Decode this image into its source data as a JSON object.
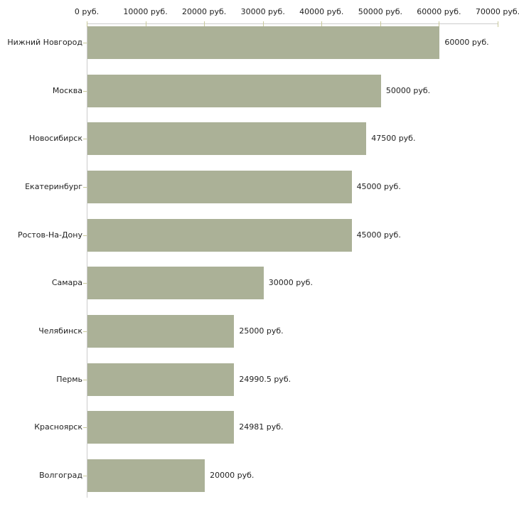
{
  "chart_data": {
    "type": "bar",
    "orientation": "horizontal",
    "title": "",
    "categories": [
      "Нижний Новгород",
      "Москва",
      "Новосибирск",
      "Екатеринбург",
      "Ростов-На-Дону",
      "Самара",
      "Челябинск",
      "Пермь",
      "Красноярск",
      "Волгоград"
    ],
    "values": [
      60000,
      50000,
      47500,
      45000,
      45000,
      30000,
      25000,
      24990.5,
      24981,
      20000
    ],
    "value_labels": [
      "60000 руб.",
      "50000 руб.",
      "47500 руб.",
      "45000 руб.",
      "45000 руб.",
      "30000 руб.",
      "25000 руб.",
      "24990.5 руб.",
      "24981 руб.",
      "20000 руб."
    ],
    "xlabel": "",
    "ylabel": "",
    "x_axis": {
      "position": "top",
      "min": 0,
      "max": 70000,
      "tick_values": [
        0,
        10000,
        20000,
        30000,
        40000,
        50000,
        60000,
        70000
      ],
      "tick_labels": [
        "0 руб.",
        "10000 руб.",
        "20000 руб.",
        "30000 руб.",
        "40000 руб.",
        "50000 руб.",
        "60000 руб.",
        "70000 руб."
      ]
    },
    "grid": false,
    "legend": false,
    "colors": {
      "bar": "#abb197",
      "axis_line": "#cccccc",
      "tick": "#c9c99a",
      "text": "#1f1f1f",
      "background": "#ffffff"
    }
  }
}
